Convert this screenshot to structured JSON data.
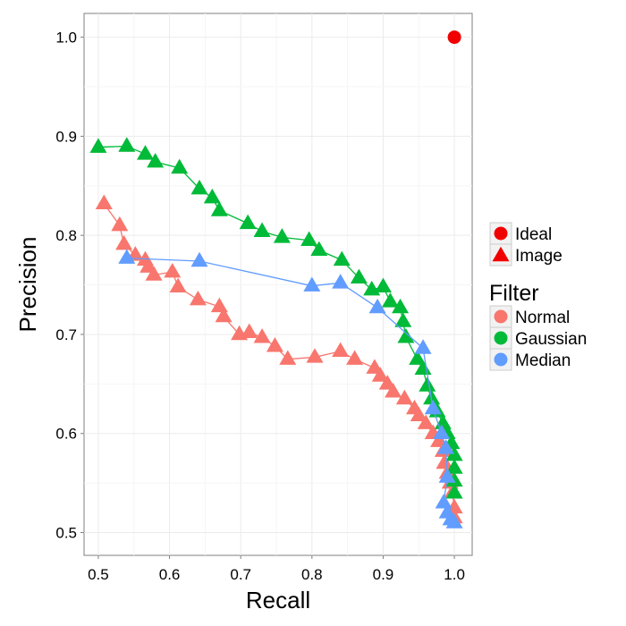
{
  "chart_data": {
    "type": "scatter",
    "xlabel": "Recall",
    "ylabel": "Precision",
    "xlim": [
      0.48,
      1.025
    ],
    "ylim": [
      0.477,
      1.024
    ],
    "x_ticks": [
      "0.5",
      "0.6",
      "0.7",
      "0.8",
      "0.9",
      "1.0"
    ],
    "y_ticks": [
      "0.5",
      "0.6",
      "0.7",
      "0.8",
      "0.9",
      "1.0"
    ],
    "grid": true,
    "legend_position": "right",
    "shape_legend": [
      {
        "label": "Ideal",
        "shape": "circle"
      },
      {
        "label": "Image",
        "shape": "triangle"
      }
    ],
    "color_legend_title": "Filter",
    "ideal_point": {
      "x": 1.0,
      "y": 1.0,
      "color": "#f00000"
    },
    "series": [
      {
        "name": "Normal",
        "color": "#f8766d",
        "points": [
          [
            0.508,
            0.832
          ],
          [
            0.53,
            0.81
          ],
          [
            0.536,
            0.791
          ],
          [
            0.552,
            0.78
          ],
          [
            0.566,
            0.775
          ],
          [
            0.57,
            0.768
          ],
          [
            0.578,
            0.76
          ],
          [
            0.604,
            0.763
          ],
          [
            0.612,
            0.748
          ],
          [
            0.64,
            0.735
          ],
          [
            0.67,
            0.728
          ],
          [
            0.676,
            0.718
          ],
          [
            0.698,
            0.7
          ],
          [
            0.712,
            0.702
          ],
          [
            0.73,
            0.697
          ],
          [
            0.748,
            0.688
          ],
          [
            0.766,
            0.675
          ],
          [
            0.804,
            0.677
          ],
          [
            0.84,
            0.683
          ],
          [
            0.86,
            0.675
          ],
          [
            0.888,
            0.666
          ],
          [
            0.896,
            0.658
          ],
          [
            0.906,
            0.65
          ],
          [
            0.914,
            0.642
          ],
          [
            0.93,
            0.635
          ],
          [
            0.944,
            0.625
          ],
          [
            0.95,
            0.618
          ],
          [
            0.96,
            0.61
          ],
          [
            0.97,
            0.6
          ],
          [
            0.978,
            0.592
          ],
          [
            0.984,
            0.582
          ],
          [
            0.986,
            0.57
          ],
          [
            0.99,
            0.56
          ],
          [
            0.994,
            0.55
          ],
          [
            0.997,
            0.54
          ],
          [
            1.0,
            0.525
          ],
          [
            1.0,
            0.515
          ]
        ]
      },
      {
        "name": "Gaussian",
        "color": "#00ba38",
        "points": [
          [
            0.5,
            0.889
          ],
          [
            0.54,
            0.89
          ],
          [
            0.566,
            0.882
          ],
          [
            0.58,
            0.874
          ],
          [
            0.614,
            0.868
          ],
          [
            0.642,
            0.847
          ],
          [
            0.66,
            0.838
          ],
          [
            0.67,
            0.825
          ],
          [
            0.71,
            0.812
          ],
          [
            0.73,
            0.804
          ],
          [
            0.758,
            0.798
          ],
          [
            0.796,
            0.795
          ],
          [
            0.81,
            0.785
          ],
          [
            0.842,
            0.775
          ],
          [
            0.866,
            0.757
          ],
          [
            0.884,
            0.745
          ],
          [
            0.9,
            0.748
          ],
          [
            0.91,
            0.733
          ],
          [
            0.924,
            0.727
          ],
          [
            0.928,
            0.713
          ],
          [
            0.932,
            0.697
          ],
          [
            0.948,
            0.675
          ],
          [
            0.956,
            0.665
          ],
          [
            0.962,
            0.648
          ],
          [
            0.968,
            0.635
          ],
          [
            0.976,
            0.622
          ],
          [
            0.984,
            0.61
          ],
          [
            0.99,
            0.6
          ],
          [
            0.996,
            0.59
          ],
          [
            1.0,
            0.578
          ],
          [
            1.0,
            0.565
          ],
          [
            1.0,
            0.552
          ],
          [
            1.0,
            0.54
          ]
        ]
      },
      {
        "name": "Median",
        "color": "#619cff",
        "points": [
          [
            0.54,
            0.777
          ],
          [
            0.642,
            0.774
          ],
          [
            0.8,
            0.749
          ],
          [
            0.84,
            0.752
          ],
          [
            0.892,
            0.727
          ],
          [
            0.956,
            0.686
          ],
          [
            0.97,
            0.625
          ],
          [
            0.982,
            0.6
          ],
          [
            0.988,
            0.585
          ],
          [
            0.99,
            0.556
          ],
          [
            0.985,
            0.53
          ],
          [
            0.99,
            0.52
          ],
          [
            0.995,
            0.513
          ],
          [
            1.0,
            0.51
          ]
        ]
      }
    ]
  }
}
